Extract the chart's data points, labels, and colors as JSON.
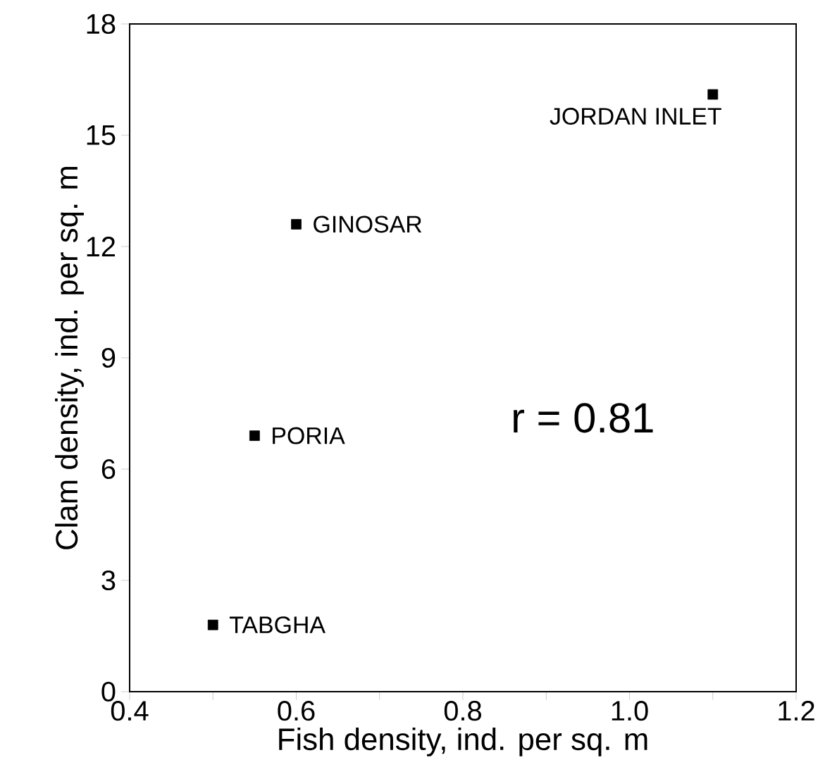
{
  "chart_data": {
    "type": "scatter",
    "xlabel": "Fish density, ind. per sq. m",
    "ylabel": "Clam density, ind. per sq. m",
    "x": [
      0.5,
      0.55,
      0.6,
      1.1
    ],
    "values": [
      1.8,
      6.9,
      12.6,
      16.1
    ],
    "color": "#000000",
    "marker": "square",
    "grid": false,
    "xlim": [
      0.4,
      1.2
    ],
    "xticks": [
      0.4,
      {
        "value": 0.5,
        "label": null
      },
      0.6,
      {
        "value": 0.7,
        "label": null
      },
      0.8,
      {
        "value": 0.9,
        "label": null
      },
      {
        "value": 1.0,
        "label": "1.0"
      },
      {
        "value": 1.1,
        "label": null
      },
      1.2
    ],
    "ylim": [
      0,
      18
    ],
    "yticks": [
      0,
      3,
      6,
      9,
      12,
      15,
      18
    ],
    "annotations": [
      {
        "text": "TABGHA",
        "x": 0.5,
        "y": 1.8
      },
      {
        "text": "PORIA",
        "x": 0.55,
        "y": 6.9
      },
      {
        "text": "GINOSAR",
        "x": 0.6,
        "y": 12.6
      },
      {
        "text": "JORDAN  INLET",
        "x": 1.1,
        "y": 16.1
      },
      "r  =  0.81"
    ]
  }
}
